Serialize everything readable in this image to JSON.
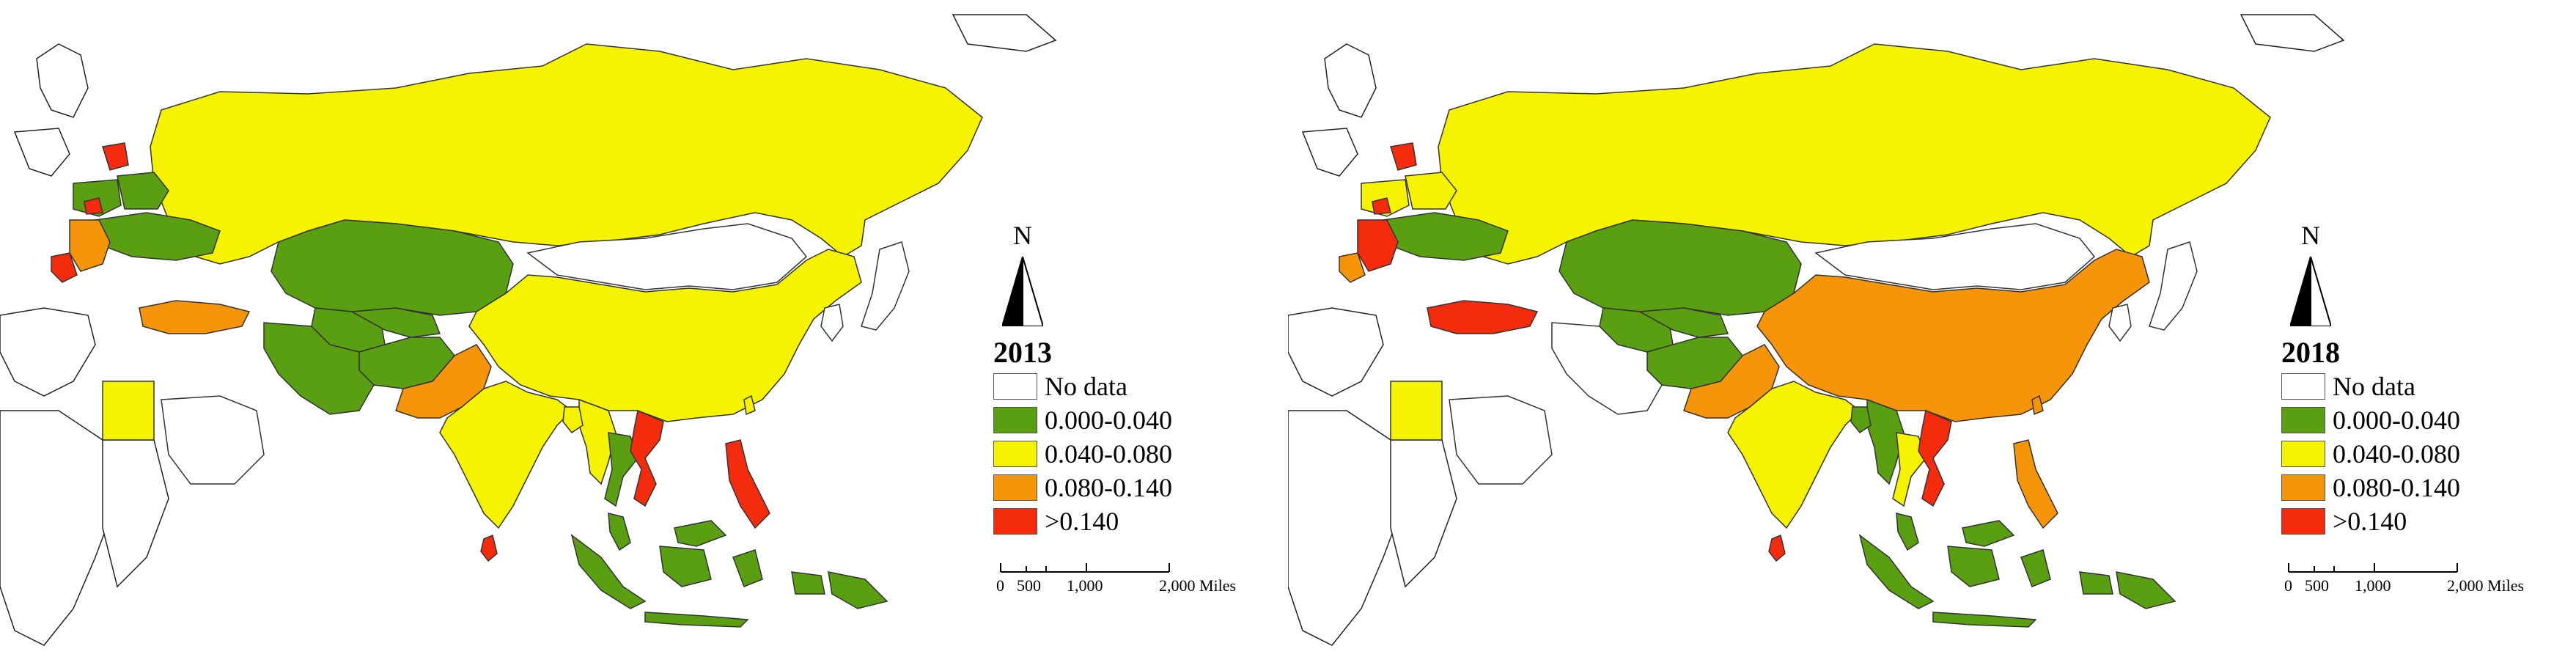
{
  "colors": {
    "no_data": "#ffffff",
    "c1": "#5a9e12",
    "c2": "#f6f300",
    "c3": "#f6940a",
    "c4": "#f52b0e",
    "border": "#333333"
  },
  "legend_items": [
    {
      "label": "No data",
      "color_key": "no_data"
    },
    {
      "label": "0.000-0.040",
      "color_key": "c1"
    },
    {
      "label": "0.040-0.080",
      "color_key": "c2"
    },
    {
      "label": "0.080-0.140",
      "color_key": "c3"
    },
    {
      "label": ">0.140",
      "color_key": "c4"
    }
  ],
  "north_label": "N",
  "scale": {
    "labels": [
      "0",
      "500",
      "1,000",
      "2,000 Miles"
    ]
  },
  "maps": [
    {
      "year": "2013",
      "regions": {
        "russia": "c2",
        "kazakhstan": "c1",
        "china": "c2",
        "mongolia": "no_data",
        "india": "c2",
        "pakistan": "c3",
        "afghanistan": "c1",
        "iran": "c1",
        "turkmenistan": "c1",
        "uzbekistan": "c1",
        "turkey": "c3",
        "ukraine": "c1",
        "belarus": "c1",
        "poland": "c1",
        "baltics": "c4",
        "balkans": "c3",
        "balkan_south": "c4",
        "egypt": "c2",
        "saudi": "no_data",
        "myanmar": "c2",
        "thailand": "c1",
        "vietnam": "c4",
        "malaysia": "c1",
        "indonesia": "c1",
        "philippines": "c4",
        "sri_lanka": "c4",
        "japan": "no_data",
        "korea": "no_data",
        "bangladesh": "c2",
        "png": "c1",
        "taiwan": "c2"
      }
    },
    {
      "year": "2018",
      "regions": {
        "russia": "c2",
        "kazakhstan": "c1",
        "china": "c3",
        "mongolia": "no_data",
        "india": "c2",
        "pakistan": "c3",
        "afghanistan": "c1",
        "iran": "no_data",
        "turkmenistan": "c1",
        "uzbekistan": "c1",
        "turkey": "c4",
        "ukraine": "c1",
        "belarus": "c2",
        "poland": "c2",
        "baltics": "c4",
        "balkans": "c4",
        "balkan_south": "c3",
        "egypt": "c2",
        "saudi": "no_data",
        "myanmar": "c1",
        "thailand": "c2",
        "vietnam": "c4",
        "malaysia": "c1",
        "indonesia": "c1",
        "philippines": "c3",
        "sri_lanka": "c4",
        "japan": "no_data",
        "korea": "no_data",
        "bangladesh": "c1",
        "png": "c1",
        "taiwan": "c3"
      }
    }
  ]
}
